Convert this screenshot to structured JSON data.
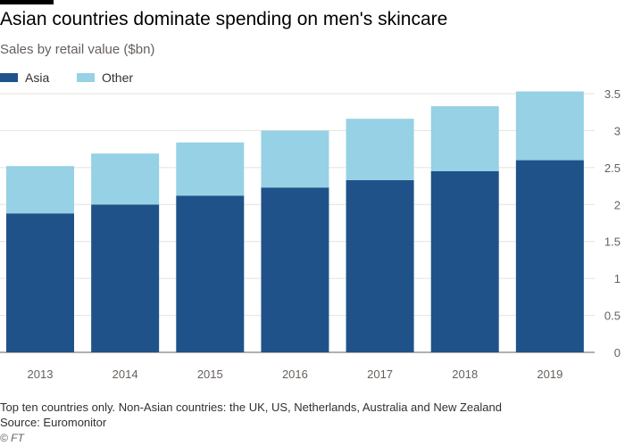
{
  "chart_data": {
    "type": "bar",
    "stacked": true,
    "title": "Asian countries dominate spending on men's skincare",
    "subtitle": "Sales by retail value ($bn)",
    "categories": [
      "2013",
      "2014",
      "2015",
      "2016",
      "2017",
      "2018",
      "2019"
    ],
    "series": [
      {
        "name": "Asia",
        "color": "#1f5289",
        "values": [
          1.88,
          2.0,
          2.12,
          2.23,
          2.33,
          2.45,
          2.6
        ]
      },
      {
        "name": "Other",
        "color": "#96d1e5",
        "values": [
          0.64,
          0.69,
          0.72,
          0.77,
          0.83,
          0.88,
          0.93
        ]
      }
    ],
    "ylim": [
      0,
      3.5
    ],
    "yticks": [
      "0",
      "0.5",
      "1",
      "1.5",
      "2",
      "2.5",
      "3",
      "3.5"
    ],
    "y_axis_side": "right",
    "grid": true,
    "legend_position": "top-left"
  },
  "footer": {
    "note": "Top ten countries only. Non-Asian countries: the UK, US, Netherlands, Australia and New Zealand",
    "source": "Source: Euromonitor",
    "credit": "© FT"
  }
}
